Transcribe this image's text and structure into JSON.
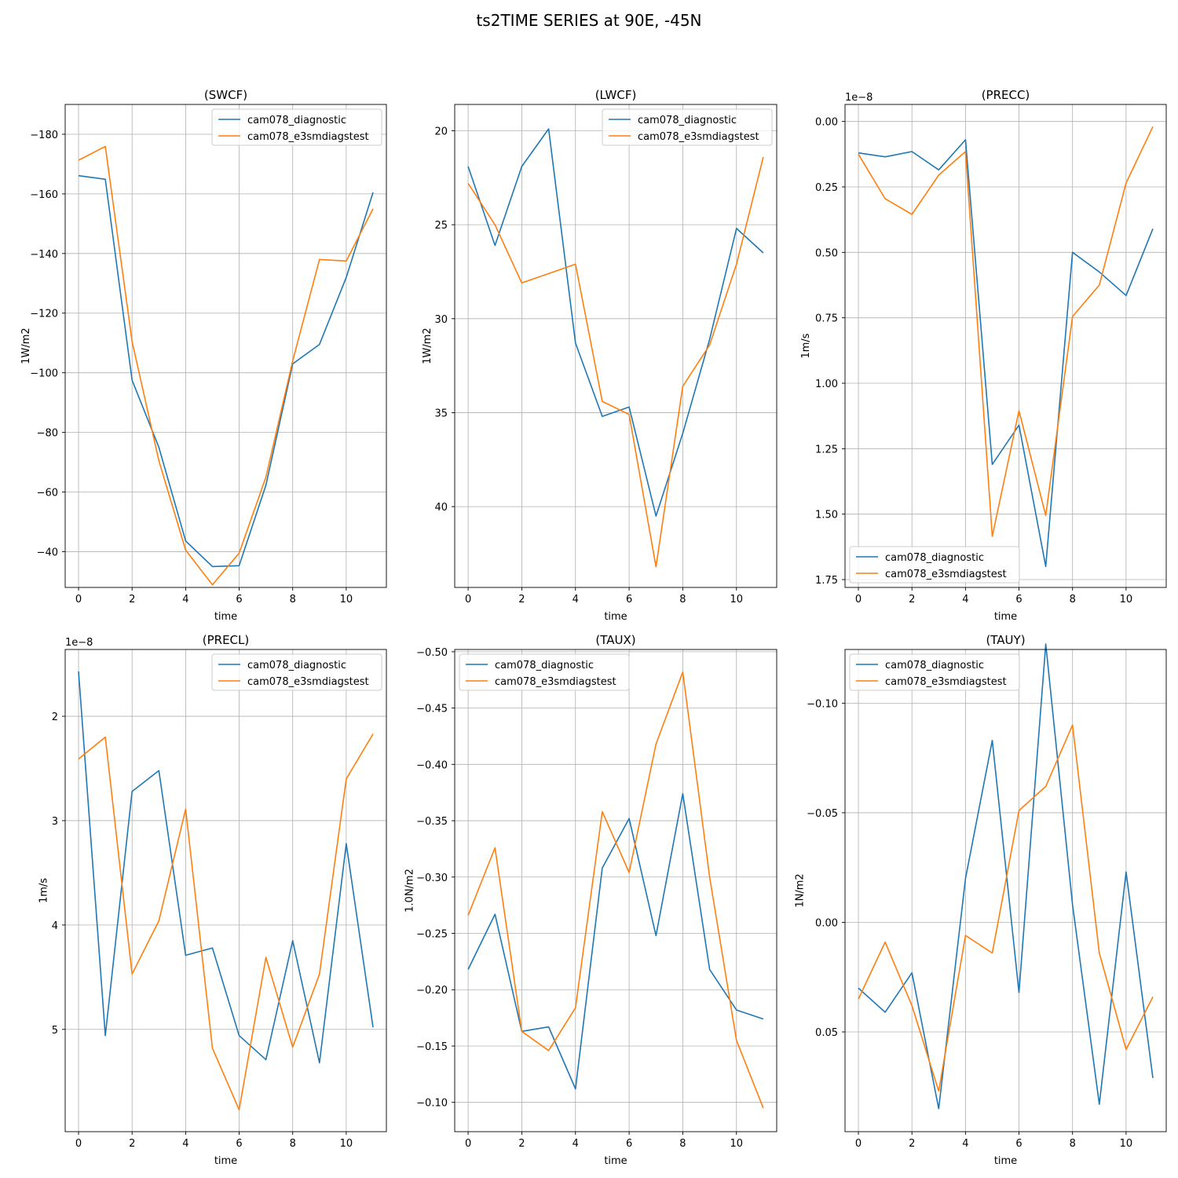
{
  "figure": {
    "suptitle": "ts2TIME SERIES at 90E, -45N"
  },
  "chart_data": [
    {
      "type": "line",
      "title": "(SWCF)",
      "xlabel": "time",
      "ylabel": "1W/m2",
      "offset_text": "",
      "x": [
        0,
        1,
        2,
        3,
        4,
        5,
        6,
        7,
        8,
        9,
        10,
        11
      ],
      "xticks": [
        0,
        2,
        4,
        6,
        8,
        10
      ],
      "xlim": [
        -0.5,
        11.5
      ],
      "ylim": [
        -28,
        -190
      ],
      "yticks": [
        -180,
        -160,
        -140,
        -120,
        -100,
        -80,
        -60,
        -40
      ],
      "ytick_labels": [
        "−180",
        "−160",
        "−140",
        "−120",
        "−100",
        "−80",
        "−60",
        "−40"
      ],
      "legend_loc": "upper right",
      "grid": true,
      "series": [
        {
          "name": "cam078_diagnostic",
          "color": "#1f77b4",
          "values": [
            -166.1,
            -164.9,
            -97.5,
            -75.0,
            -43.6,
            -35.0,
            -35.3,
            -62.3,
            -103.0,
            -109.5,
            -132.0,
            -160.5
          ]
        },
        {
          "name": "cam078_e3smdiagstest",
          "color": "#ff7f0e",
          "values": [
            -171.3,
            -175.9,
            -110.5,
            -70.5,
            -40.5,
            -28.9,
            -39.5,
            -65.0,
            -104.0,
            -138.0,
            -137.5,
            -155.0
          ]
        }
      ]
    },
    {
      "type": "line",
      "title": "(LWCF)",
      "xlabel": "time",
      "ylabel": "1W/m2",
      "offset_text": "",
      "x": [
        0,
        1,
        2,
        3,
        4,
        5,
        6,
        7,
        8,
        9,
        10,
        11
      ],
      "xticks": [
        0,
        2,
        4,
        6,
        8,
        10
      ],
      "xlim": [
        -0.5,
        11.5
      ],
      "ylim": [
        44.3,
        18.6
      ],
      "yticks": [
        20,
        25,
        30,
        35,
        40
      ],
      "ytick_labels": [
        "20",
        "25",
        "30",
        "35",
        "40"
      ],
      "legend_loc": "upper right",
      "grid": true,
      "series": [
        {
          "name": "cam078_diagnostic",
          "color": "#1f77b4",
          "values": [
            21.9,
            26.1,
            21.9,
            19.9,
            31.3,
            35.2,
            34.7,
            40.5,
            36.1,
            31.1,
            25.2,
            26.5
          ]
        },
        {
          "name": "cam078_e3smdiagstest",
          "color": "#ff7f0e",
          "values": [
            22.8,
            25.0,
            28.1,
            27.6,
            27.1,
            34.4,
            35.1,
            43.2,
            33.6,
            31.4,
            27.1,
            21.4
          ]
        }
      ]
    },
    {
      "type": "line",
      "title": "(PRECC)",
      "xlabel": "time",
      "ylabel": "1m/s",
      "offset_text": "1e−8",
      "x": [
        0,
        1,
        2,
        3,
        4,
        5,
        6,
        7,
        8,
        9,
        10,
        11
      ],
      "xticks": [
        0,
        2,
        4,
        6,
        8,
        10
      ],
      "xlim": [
        -0.5,
        11.5
      ],
      "ylim": [
        1.78,
        -0.065
      ],
      "yticks": [
        0.0,
        0.25,
        0.5,
        0.75,
        1.0,
        1.25,
        1.5,
        1.75
      ],
      "ytick_labels": [
        "0.00",
        "0.25",
        "0.50",
        "0.75",
        "1.00",
        "1.25",
        "1.50",
        "1.75"
      ],
      "legend_loc": "lower left",
      "grid": true,
      "series": [
        {
          "name": "cam078_diagnostic",
          "color": "#1f77b4",
          "values": [
            0.12,
            0.135,
            0.115,
            0.185,
            0.07,
            1.31,
            1.16,
            1.7,
            0.5,
            0.575,
            0.665,
            0.41
          ]
        },
        {
          "name": "cam078_e3smdiagstest",
          "color": "#ff7f0e",
          "values": [
            0.125,
            0.295,
            0.355,
            0.205,
            0.115,
            1.585,
            1.105,
            1.505,
            0.745,
            0.625,
            0.235,
            0.02
          ]
        }
      ]
    },
    {
      "type": "line",
      "title": "(PRECL)",
      "xlabel": "time",
      "ylabel": "1m/s",
      "offset_text": "1e−8",
      "x": [
        0,
        1,
        2,
        3,
        4,
        5,
        6,
        7,
        8,
        9,
        10,
        11
      ],
      "xticks": [
        0,
        2,
        4,
        6,
        8,
        10
      ],
      "xlim": [
        -0.5,
        11.5
      ],
      "ylim": [
        5.98,
        1.36
      ],
      "yticks": [
        2,
        3,
        4,
        5
      ],
      "ytick_labels": [
        "2",
        "3",
        "4",
        "5"
      ],
      "legend_loc": "upper right",
      "grid": true,
      "series": [
        {
          "name": "cam078_diagnostic",
          "color": "#1f77b4",
          "values": [
            1.57,
            5.06,
            2.72,
            2.52,
            4.29,
            4.22,
            5.06,
            5.29,
            4.15,
            5.32,
            3.22,
            4.98
          ]
        },
        {
          "name": "cam078_e3smdiagstest",
          "color": "#ff7f0e",
          "values": [
            2.41,
            2.2,
            4.47,
            3.96,
            2.89,
            5.18,
            5.77,
            4.31,
            5.17,
            4.47,
            2.6,
            2.17
          ]
        }
      ]
    },
    {
      "type": "line",
      "title": "(TAUX)",
      "xlabel": "time",
      "ylabel": "1.0N/m2",
      "offset_text": "",
      "x": [
        0,
        1,
        2,
        3,
        4,
        5,
        6,
        7,
        8,
        9,
        10,
        11
      ],
      "xticks": [
        0,
        2,
        4,
        6,
        8,
        10
      ],
      "xlim": [
        -0.5,
        11.5
      ],
      "ylim": [
        -0.074,
        -0.502
      ],
      "yticks": [
        -0.5,
        -0.45,
        -0.4,
        -0.35,
        -0.3,
        -0.25,
        -0.2,
        -0.15,
        -0.1
      ],
      "ytick_labels": [
        "−0.50",
        "−0.45",
        "−0.40",
        "−0.35",
        "−0.30",
        "−0.25",
        "−0.20",
        "−0.15",
        "−0.10"
      ],
      "legend_loc": "upper left",
      "grid": true,
      "series": [
        {
          "name": "cam078_diagnostic",
          "color": "#1f77b4",
          "values": [
            -0.218,
            -0.267,
            -0.163,
            -0.167,
            -0.112,
            -0.308,
            -0.352,
            -0.248,
            -0.374,
            -0.218,
            -0.182,
            -0.174
          ]
        },
        {
          "name": "cam078_e3smdiagstest",
          "color": "#ff7f0e",
          "values": [
            -0.266,
            -0.326,
            -0.163,
            -0.146,
            -0.184,
            -0.358,
            -0.304,
            -0.418,
            -0.482,
            -0.3,
            -0.155,
            -0.095
          ]
        }
      ]
    },
    {
      "type": "line",
      "title": "(TAUY)",
      "xlabel": "time",
      "ylabel": "1N/m2",
      "offset_text": "",
      "x": [
        0,
        1,
        2,
        3,
        4,
        5,
        6,
        7,
        8,
        9,
        10,
        11
      ],
      "xticks": [
        0,
        2,
        4,
        6,
        8,
        10
      ],
      "xlim": [
        -0.5,
        11.5
      ],
      "ylim": [
        0.0955,
        -0.1245
      ],
      "yticks": [
        -0.1,
        -0.05,
        0.0,
        0.05
      ],
      "ytick_labels": [
        "−0.10",
        "−0.05",
        "0.00",
        "0.05"
      ],
      "legend_loc": "upper left",
      "grid": true,
      "series": [
        {
          "name": "cam078_diagnostic",
          "color": "#1f77b4",
          "values": [
            0.03,
            0.041,
            0.023,
            0.085,
            -0.02,
            -0.083,
            0.032,
            -0.127,
            -0.008,
            0.083,
            -0.023,
            0.071
          ]
        },
        {
          "name": "cam078_e3smdiagstest",
          "color": "#ff7f0e",
          "values": [
            0.035,
            0.009,
            0.038,
            0.077,
            0.006,
            0.014,
            -0.051,
            -0.062,
            -0.09,
            0.014,
            0.058,
            0.034
          ]
        }
      ]
    }
  ]
}
